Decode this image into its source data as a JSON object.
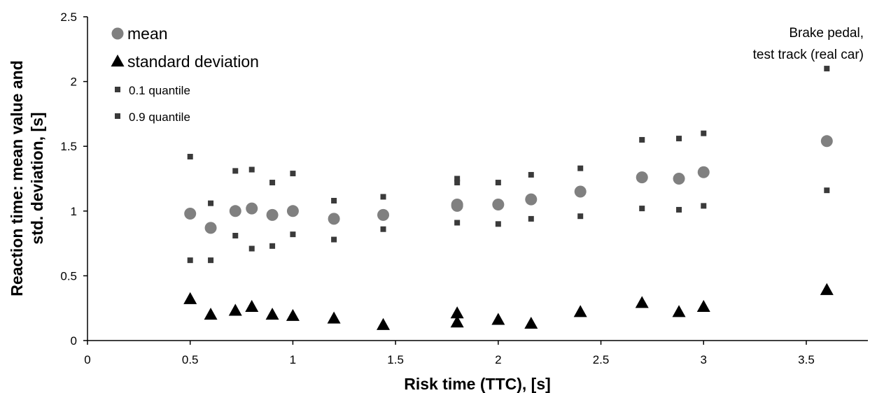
{
  "chart_data": {
    "type": "scatter",
    "title": "",
    "xlabel": "Risk time (TTC), [s]",
    "ylabel_lines": [
      "Reaction time: mean value and",
      "std. deviation, [s]"
    ],
    "xlim": [
      0,
      3.8
    ],
    "ylim": [
      0,
      2.5
    ],
    "x_ticks": [
      "0",
      "0.5",
      "1",
      "1.5",
      "2",
      "2.5",
      "3",
      "3.5"
    ],
    "y_ticks": [
      "0",
      "0.5",
      "1",
      "1.5",
      "2",
      "2.5"
    ],
    "grid": false,
    "legend_position": "top-left",
    "annotation_lines": [
      "Brake pedal,",
      "test track (real car)"
    ],
    "colors": {
      "mean": "#808080",
      "std": "#000000",
      "quantile": "#3a3a3a"
    },
    "series": [
      {
        "name": "mean",
        "marker": "circle",
        "points": [
          [
            0.5,
            0.98
          ],
          [
            0.6,
            0.87
          ],
          [
            0.72,
            1.0
          ],
          [
            0.8,
            1.02
          ],
          [
            0.9,
            0.97
          ],
          [
            1.0,
            1.0
          ],
          [
            1.2,
            0.94
          ],
          [
            1.44,
            0.97
          ],
          [
            1.8,
            1.04
          ],
          [
            1.8,
            1.05
          ],
          [
            2.0,
            1.05
          ],
          [
            2.16,
            1.09
          ],
          [
            2.4,
            1.15
          ],
          [
            2.7,
            1.26
          ],
          [
            2.88,
            1.25
          ],
          [
            3.0,
            1.3
          ],
          [
            3.6,
            1.54
          ]
        ]
      },
      {
        "name": "standard deviation",
        "marker": "triangle",
        "points": [
          [
            0.5,
            0.32
          ],
          [
            0.6,
            0.2
          ],
          [
            0.72,
            0.23
          ],
          [
            0.8,
            0.26
          ],
          [
            0.9,
            0.2
          ],
          [
            1.0,
            0.19
          ],
          [
            1.2,
            0.17
          ],
          [
            1.44,
            0.12
          ],
          [
            1.8,
            0.21
          ],
          [
            1.8,
            0.14
          ],
          [
            2.0,
            0.16
          ],
          [
            2.16,
            0.13
          ],
          [
            2.4,
            0.22
          ],
          [
            2.7,
            0.29
          ],
          [
            2.88,
            0.22
          ],
          [
            3.0,
            0.26
          ],
          [
            3.6,
            0.39
          ]
        ]
      },
      {
        "name": "0.1 quantile",
        "marker": "square",
        "points": [
          [
            0.5,
            0.62
          ],
          [
            0.6,
            0.62
          ],
          [
            0.72,
            0.81
          ],
          [
            0.8,
            0.71
          ],
          [
            0.9,
            0.73
          ],
          [
            1.0,
            0.82
          ],
          [
            1.2,
            0.78
          ],
          [
            1.44,
            0.86
          ],
          [
            1.8,
            0.91
          ],
          [
            2.0,
            0.9
          ],
          [
            2.16,
            0.94
          ],
          [
            2.4,
            0.96
          ],
          [
            2.7,
            1.02
          ],
          [
            2.88,
            1.01
          ],
          [
            3.0,
            1.04
          ],
          [
            3.6,
            1.16
          ]
        ]
      },
      {
        "name": "0.9 quantile",
        "marker": "square",
        "points": [
          [
            0.5,
            1.42
          ],
          [
            0.6,
            1.06
          ],
          [
            0.72,
            1.31
          ],
          [
            0.8,
            1.32
          ],
          [
            0.9,
            1.22
          ],
          [
            1.0,
            1.29
          ],
          [
            1.2,
            1.08
          ],
          [
            1.44,
            1.11
          ],
          [
            1.8,
            1.22
          ],
          [
            1.8,
            1.25
          ],
          [
            2.0,
            1.22
          ],
          [
            2.16,
            1.28
          ],
          [
            2.4,
            1.33
          ],
          [
            2.7,
            1.55
          ],
          [
            2.88,
            1.56
          ],
          [
            3.0,
            1.6
          ],
          [
            3.6,
            2.1
          ]
        ]
      }
    ]
  }
}
